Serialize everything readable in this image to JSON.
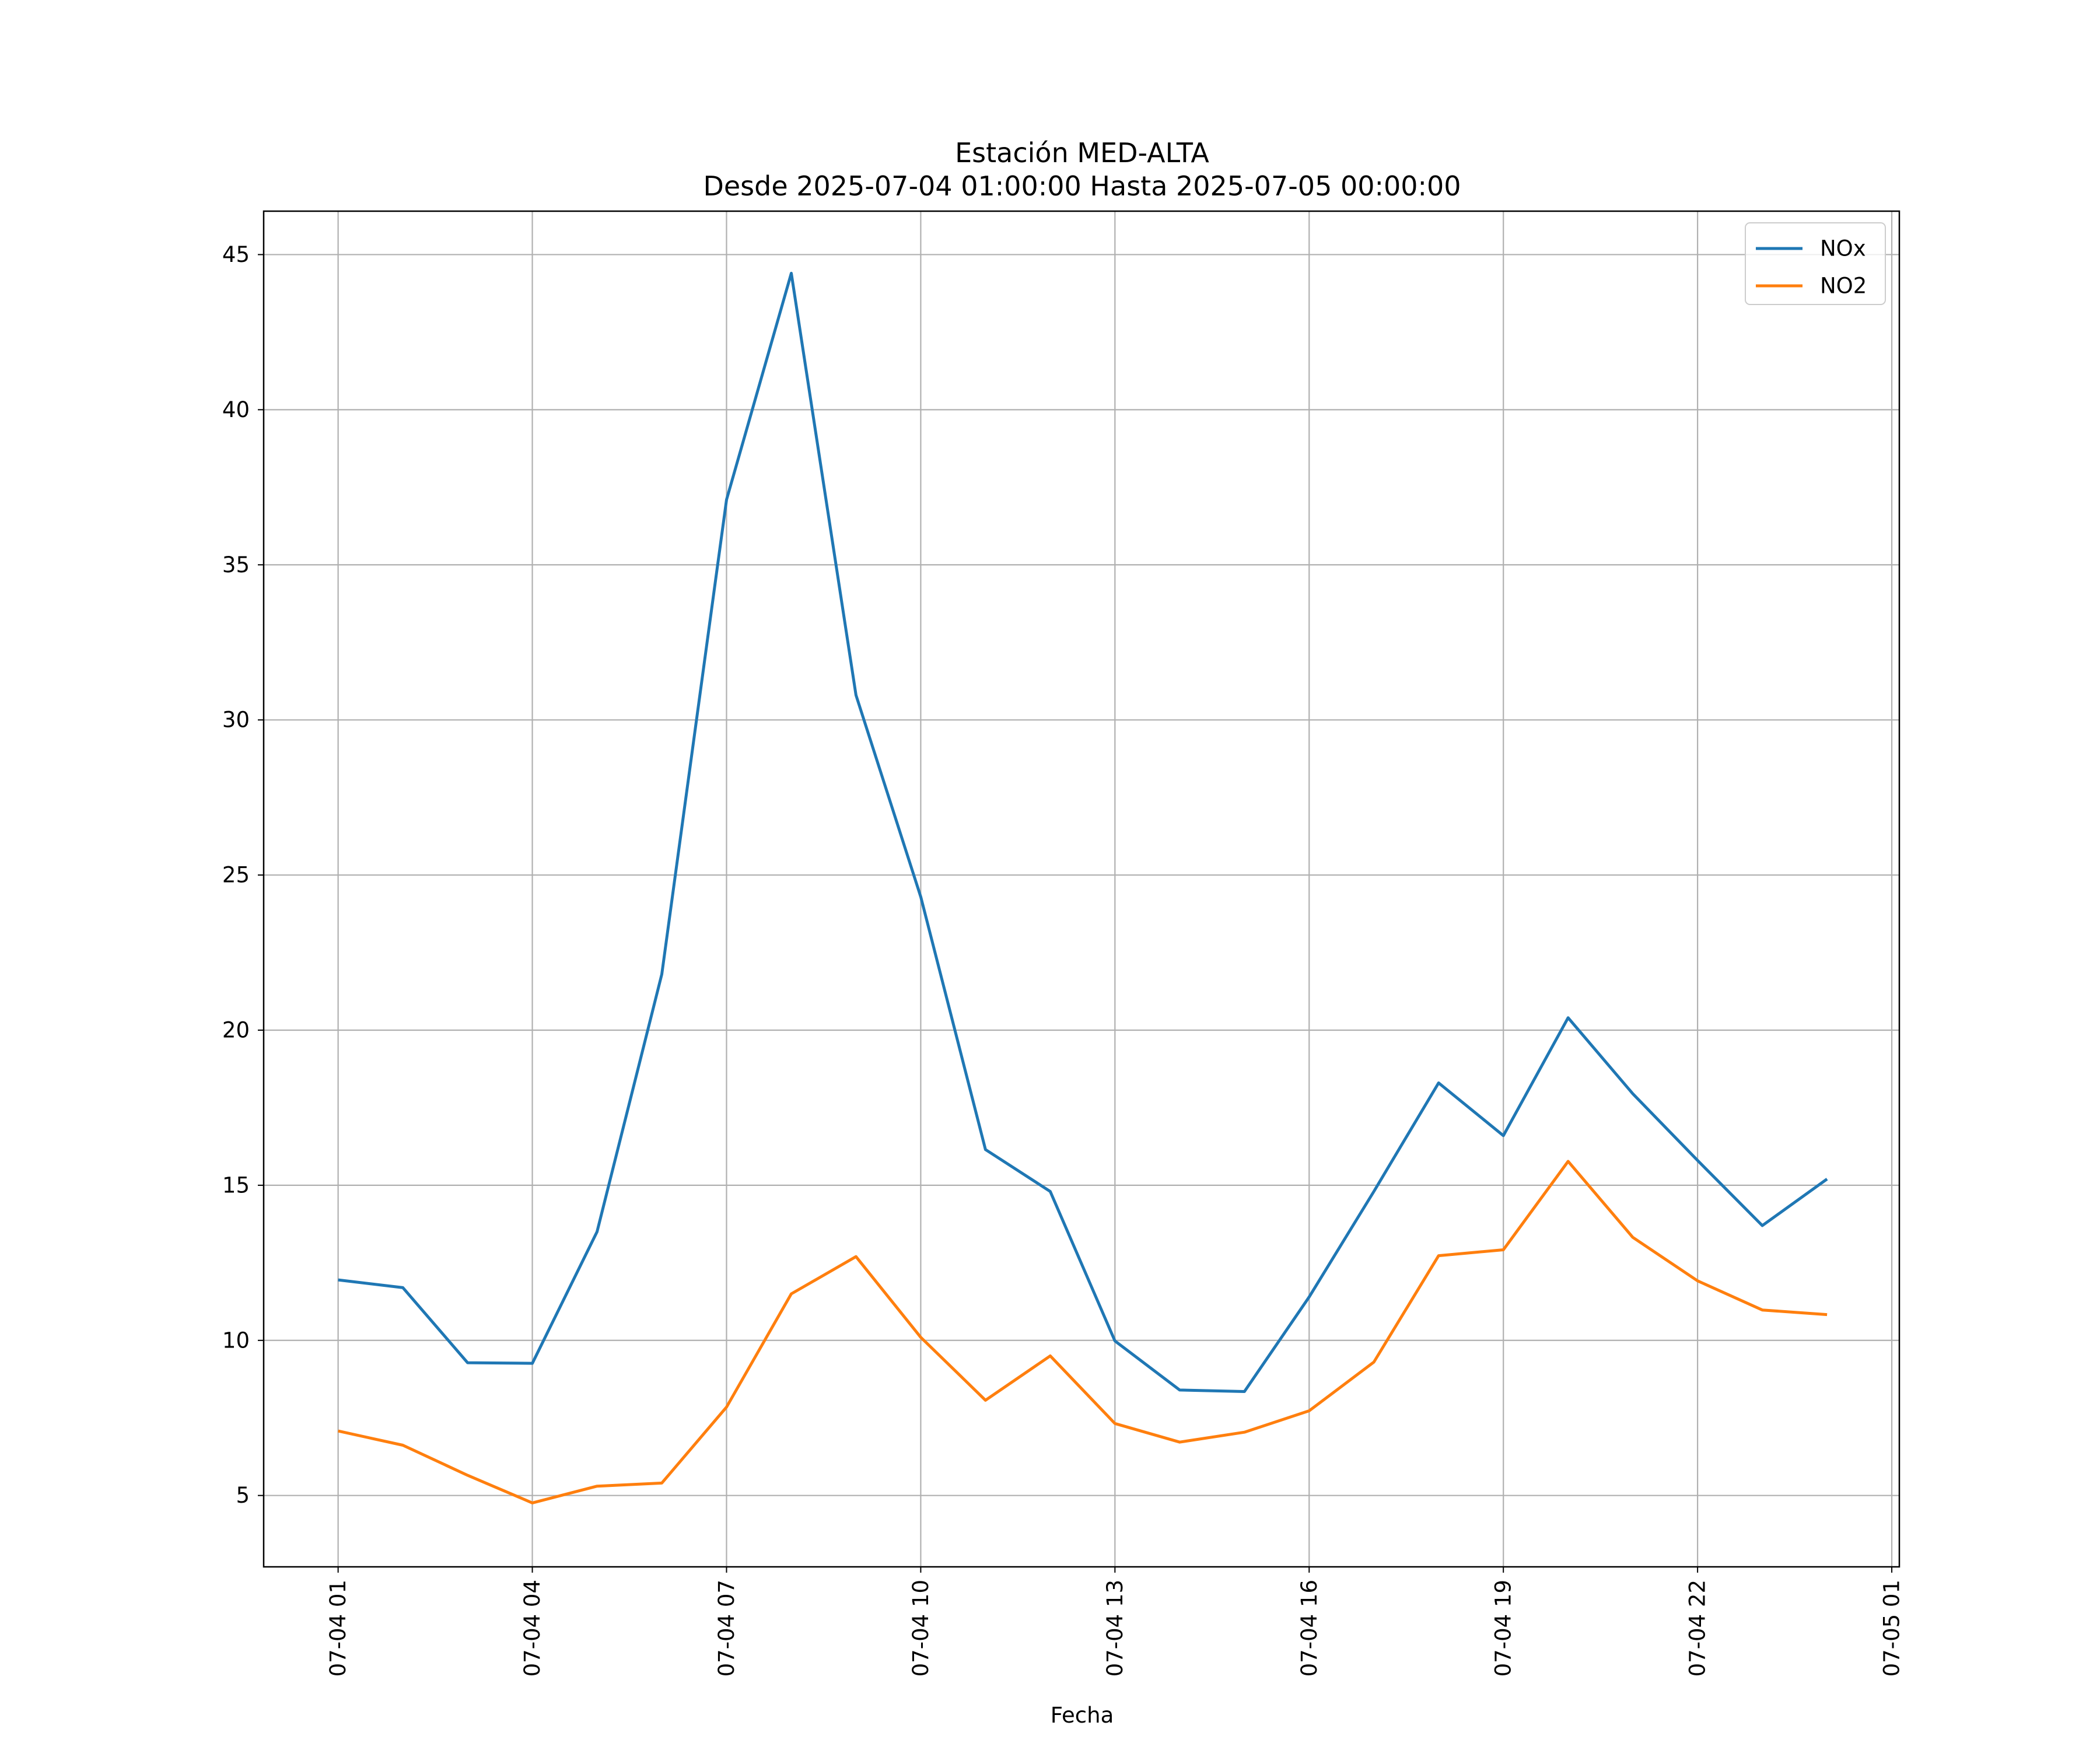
{
  "chart_data": {
    "type": "line",
    "title": "Estación MED-ALTA",
    "subtitle": "Desde 2025-07-04 01:00:00 Hasta 2025-07-05 00:00:00",
    "xlabel": "Fecha",
    "ylabel": "",
    "x": [
      "2025-07-04 01:00",
      "2025-07-04 02:00",
      "2025-07-04 03:00",
      "2025-07-04 04:00",
      "2025-07-04 05:00",
      "2025-07-04 06:00",
      "2025-07-04 07:00",
      "2025-07-04 08:00",
      "2025-07-04 09:00",
      "2025-07-04 10:00",
      "2025-07-04 11:00",
      "2025-07-04 12:00",
      "2025-07-04 13:00",
      "2025-07-04 14:00",
      "2025-07-04 15:00",
      "2025-07-04 16:00",
      "2025-07-04 17:00",
      "2025-07-04 18:00",
      "2025-07-04 19:00",
      "2025-07-04 20:00",
      "2025-07-04 21:00",
      "2025-07-04 22:00",
      "2025-07-04 23:00",
      "2025-07-05 00:00"
    ],
    "xticks": [
      "2025-07-04 01:00",
      "2025-07-04 04:00",
      "2025-07-04 07:00",
      "2025-07-04 10:00",
      "2025-07-04 13:00",
      "2025-07-04 16:00",
      "2025-07-04 19:00",
      "2025-07-04 22:00",
      "2025-07-05 01:00"
    ],
    "xtick_labels": [
      "07-04 01",
      "07-04 04",
      "07-04 07",
      "07-04 10",
      "07-04 13",
      "07-04 16",
      "07-04 19",
      "07-04 22",
      "07-05 01"
    ],
    "xlim": [
      "2025-07-03 23:51",
      "2025-07-05 01:07"
    ],
    "yticks": [
      5,
      10,
      15,
      20,
      25,
      30,
      35,
      40,
      45
    ],
    "ylim": [
      2.7,
      46.4
    ],
    "grid": true,
    "legend_position": "top-right",
    "series": [
      {
        "name": "NOx",
        "color": "#1f77b4",
        "values": [
          11.95,
          11.7,
          9.28,
          9.26,
          13.5,
          21.8,
          37.1,
          44.4,
          30.8,
          24.3,
          16.15,
          14.8,
          9.98,
          8.4,
          8.35,
          11.4,
          14.8,
          18.3,
          16.6,
          20.4,
          17.95,
          15.8,
          13.7,
          15.2
        ]
      },
      {
        "name": "NO2",
        "color": "#ff7f0e",
        "values": [
          7.08,
          6.62,
          5.65,
          4.76,
          5.3,
          5.4,
          7.85,
          11.5,
          12.7,
          10.1,
          8.07,
          9.5,
          7.32,
          6.72,
          7.04,
          7.73,
          9.3,
          12.73,
          12.92,
          15.77,
          13.32,
          11.92,
          10.98,
          10.83
        ]
      }
    ]
  }
}
